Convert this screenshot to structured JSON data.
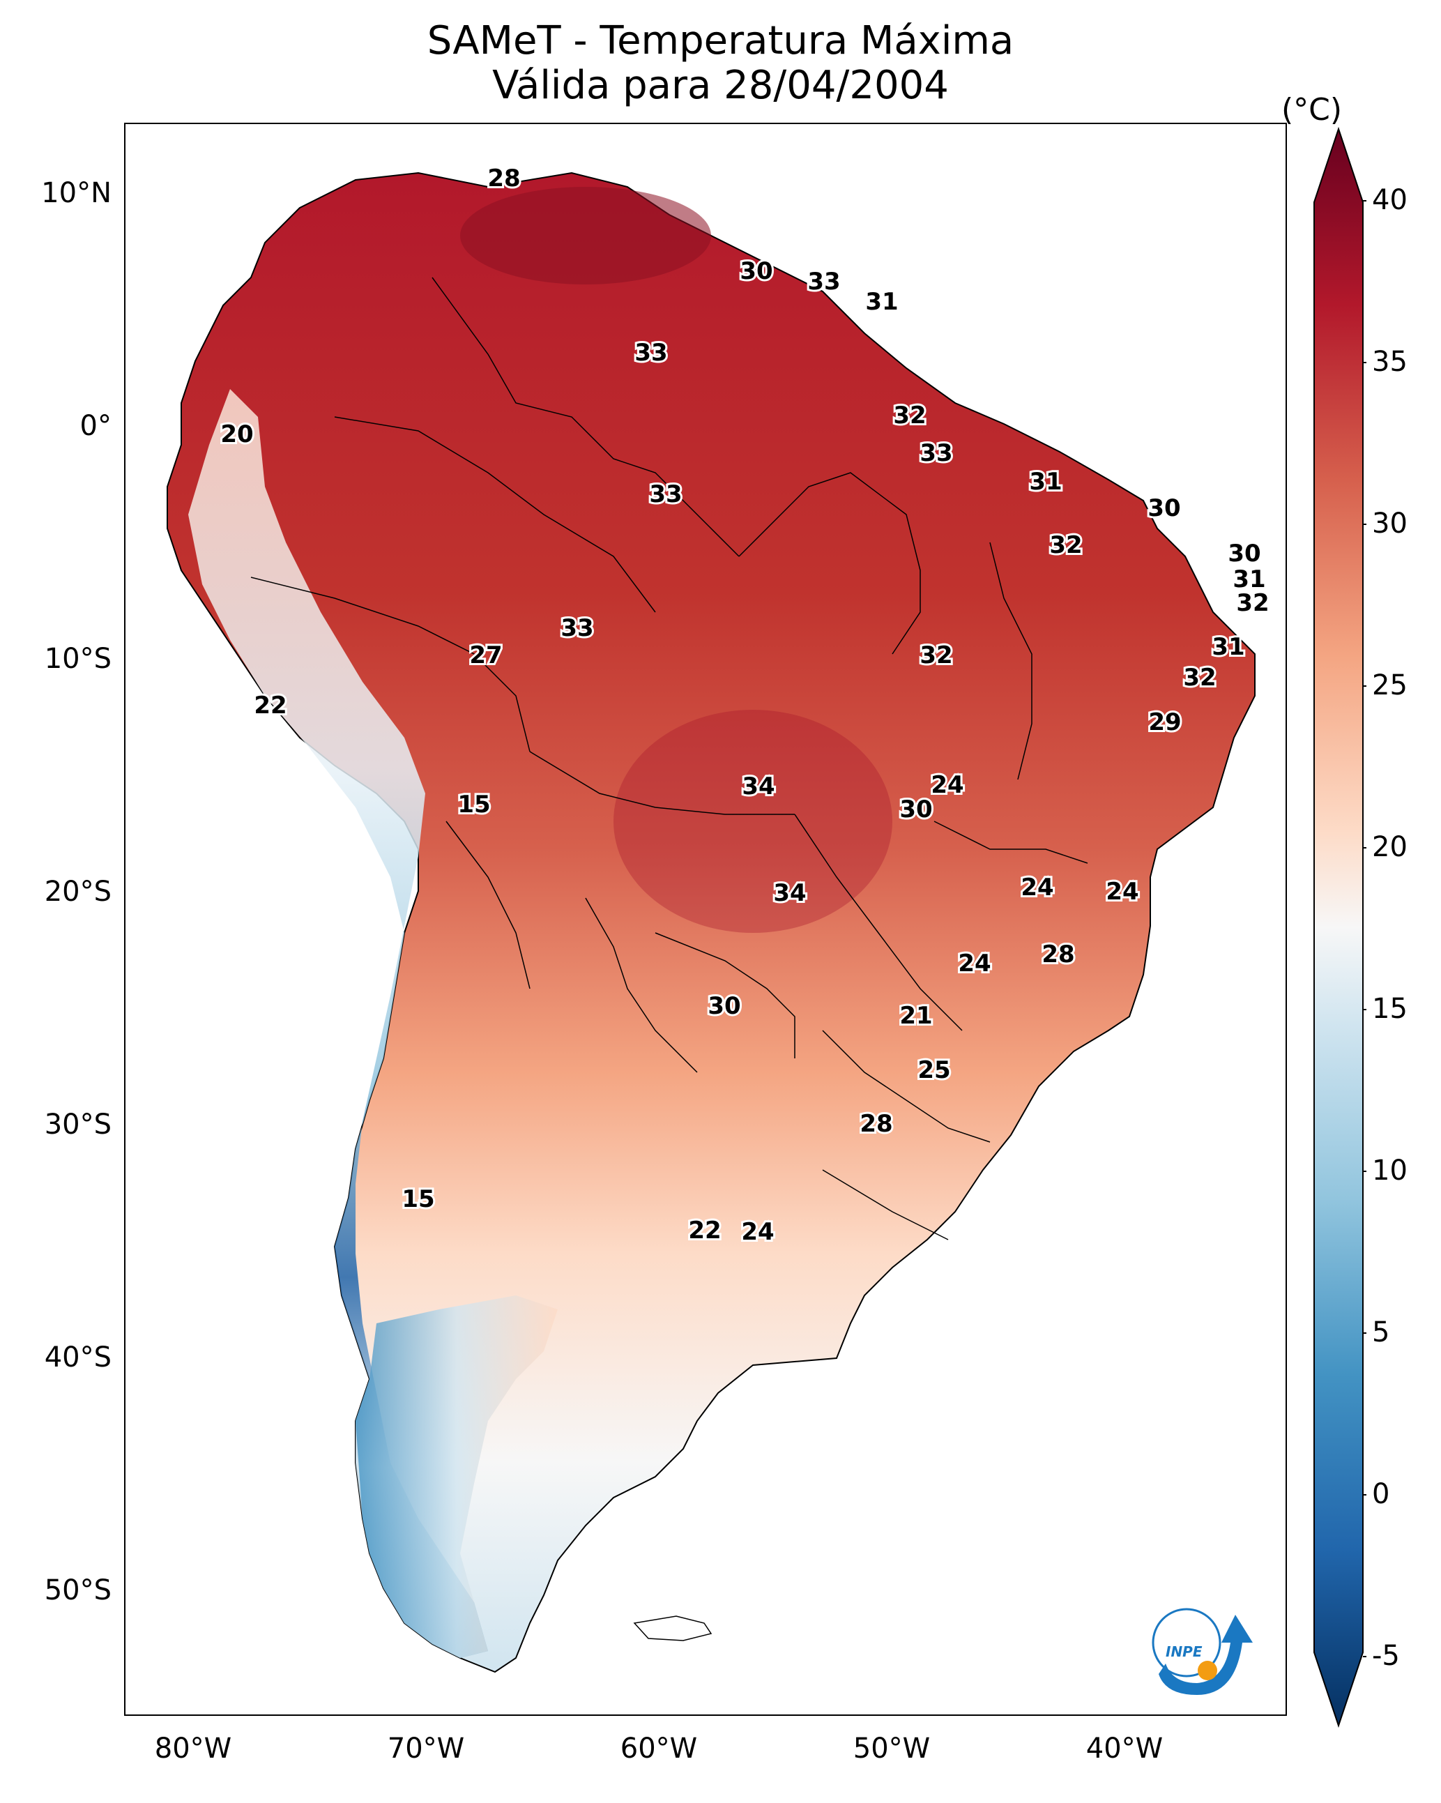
{
  "title": "SAMeT - Temperatura Máxima",
  "subtitle": "Válida para 28/04/2004",
  "colorbar": {
    "unit": "(°C)",
    "ticks": [
      "40",
      "35",
      "30",
      "25",
      "20",
      "15",
      "10",
      "5",
      "0",
      "-5"
    ],
    "min": -5,
    "max": 40,
    "colors": {
      "max": "#67001f",
      "warm": "#d6604d",
      "neutral": "#f7f7f7",
      "cool": "#4393c3",
      "min": "#053061"
    }
  },
  "axes": {
    "lat_ticks": [
      "10°N",
      "0°",
      "10°S",
      "20°S",
      "30°S",
      "40°S",
      "50°S"
    ],
    "lon_ticks": [
      "80°W",
      "70°W",
      "60°W",
      "50°W",
      "40°W"
    ]
  },
  "map_labels": [
    "28",
    "30",
    "33",
    "31",
    "33",
    "32",
    "33",
    "31",
    "30",
    "20",
    "33",
    "32",
    "30",
    "31",
    "32",
    "33",
    "27",
    "32",
    "31",
    "32",
    "22",
    "29",
    "34",
    "24",
    "15",
    "30",
    "34",
    "24",
    "24",
    "28",
    "24",
    "30",
    "21",
    "25",
    "28",
    "15",
    "22",
    "24"
  ],
  "logo": {
    "text": "INPE",
    "colors": {
      "ring": "#1a78c2",
      "dot": "#f39c12"
    }
  }
}
